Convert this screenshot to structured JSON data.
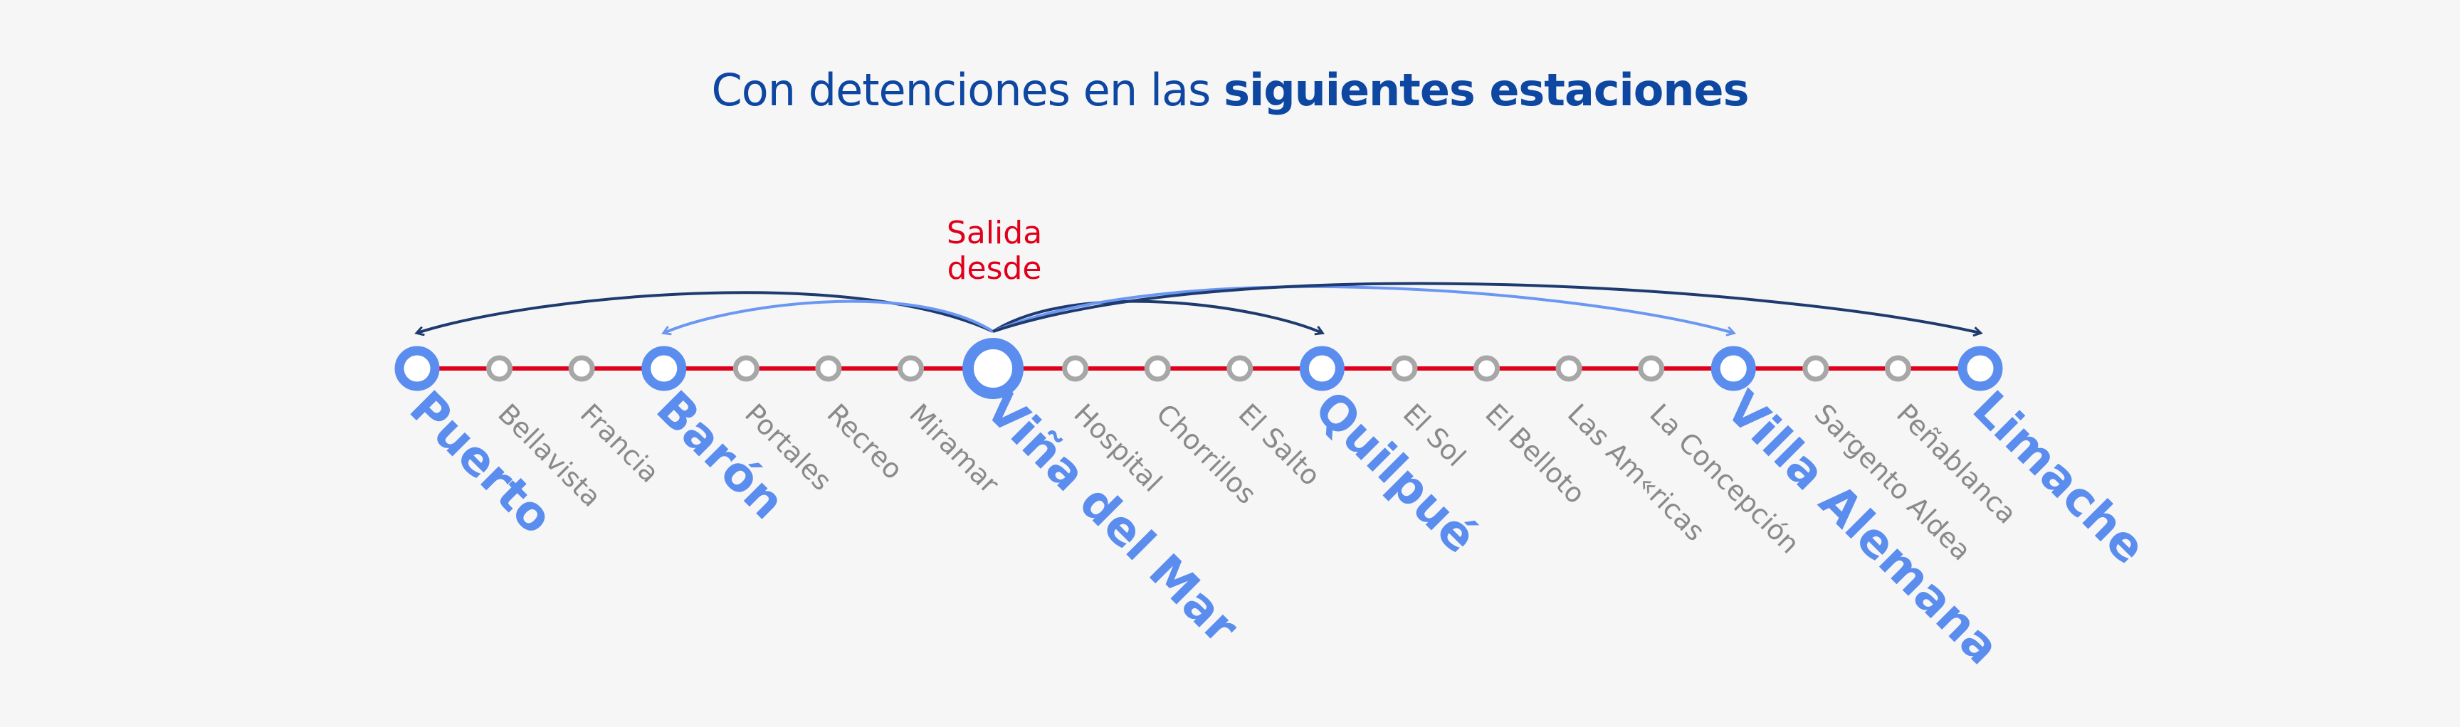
{
  "title": {
    "regular": "Con detenciones en las ",
    "bold": "siguientes estaciones"
  },
  "origin_label": [
    "Salida",
    "desde"
  ],
  "origin_station": "Viña del Mar",
  "colors": {
    "title": "#0d47a1",
    "line": "#e0001b",
    "main_station": "#5b8def",
    "minor_station": "#8a8a8a",
    "arrow_dark": "#1e3a6e",
    "arrow_light": "#6a97f2",
    "origin_label": "#e0001b",
    "background": "#f6f6f6"
  },
  "stations": [
    {
      "name": "Puerto",
      "main": true
    },
    {
      "name": "Bellavista",
      "main": false
    },
    {
      "name": "Francia",
      "main": false
    },
    {
      "name": "Barón",
      "main": true
    },
    {
      "name": "Portales",
      "main": false
    },
    {
      "name": "Recreo",
      "main": false
    },
    {
      "name": "Miramar",
      "main": false
    },
    {
      "name": "Viña del Mar",
      "main": true,
      "origin": true
    },
    {
      "name": "Hospital",
      "main": false
    },
    {
      "name": "Chorrillos",
      "main": false
    },
    {
      "name": "El Salto",
      "main": false
    },
    {
      "name": "Quilpué",
      "main": true
    },
    {
      "name": "El Sol",
      "main": false
    },
    {
      "name": "El Belloto",
      "main": false
    },
    {
      "name": "Las Am«ricas",
      "main": false
    },
    {
      "name": "La Concepción",
      "main": false
    },
    {
      "name": "Villa Alemana",
      "main": true
    },
    {
      "name": "Sargento Aldea",
      "main": false
    },
    {
      "name": "Peñablanca",
      "main": false
    },
    {
      "name": "Limache",
      "main": true
    }
  ],
  "routes": [
    {
      "from": "Viña del Mar",
      "to": "Puerto",
      "style": "dark"
    },
    {
      "from": "Viña del Mar",
      "to": "Barón",
      "style": "light"
    },
    {
      "from": "Viña del Mar",
      "to": "Quilpué",
      "style": "dark"
    },
    {
      "from": "Viña del Mar",
      "to": "Villa Alemana",
      "style": "light"
    },
    {
      "from": "Viña del Mar",
      "to": "Limache",
      "style": "dark"
    }
  ]
}
